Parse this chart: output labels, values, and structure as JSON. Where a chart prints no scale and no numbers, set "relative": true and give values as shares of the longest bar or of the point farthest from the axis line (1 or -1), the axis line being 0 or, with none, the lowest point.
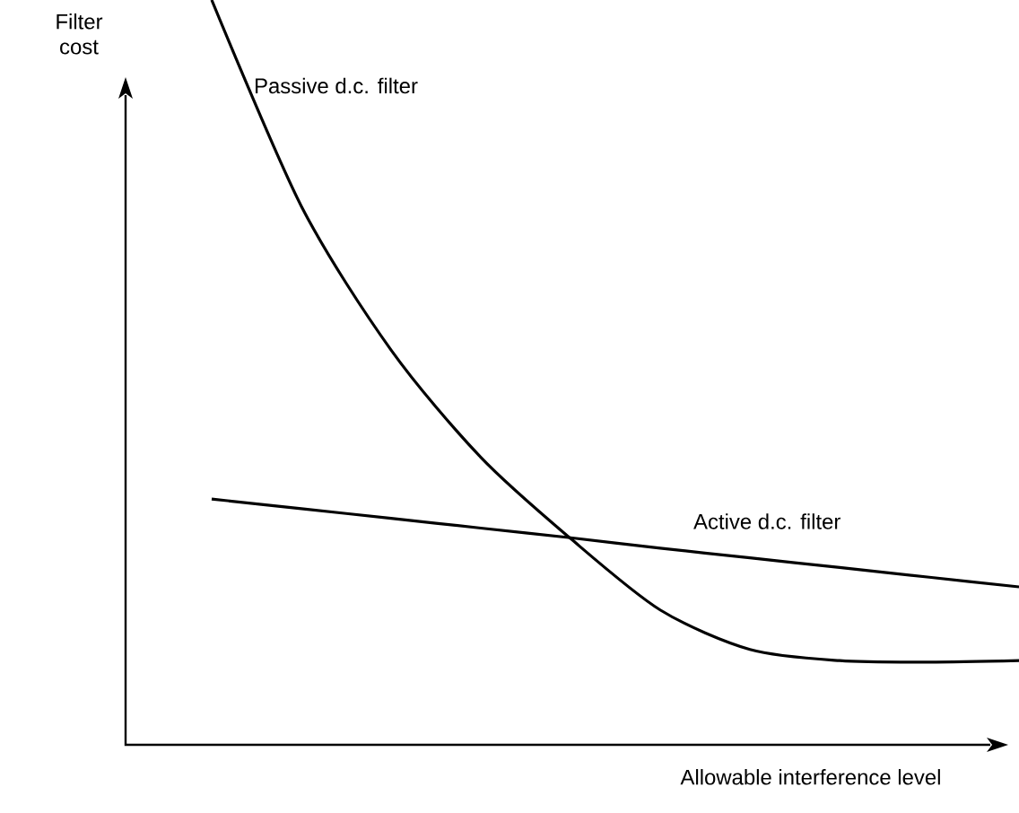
{
  "chart_data": {
    "type": "line",
    "relative": true,
    "xlabel": "Allowable interference level",
    "ylabel": "Filter cost",
    "categories": [
      null,
      null,
      null,
      null,
      null,
      null,
      null,
      null,
      null,
      null
    ],
    "series": [
      {
        "name": "Passive d.c. filter",
        "color": "#000000",
        "values": [
          1.0,
          0.723,
          0.53,
          0.386,
          0.277,
          0.181,
          0.128,
          0.113,
          0.111,
          0.113
        ]
      },
      {
        "name": "Active d.c. filter",
        "color": "#000000",
        "values": [
          0.33,
          0.317,
          0.304,
          0.291,
          0.278,
          0.264,
          0.251,
          0.238,
          0.225,
          0.212
        ]
      }
    ]
  }
}
